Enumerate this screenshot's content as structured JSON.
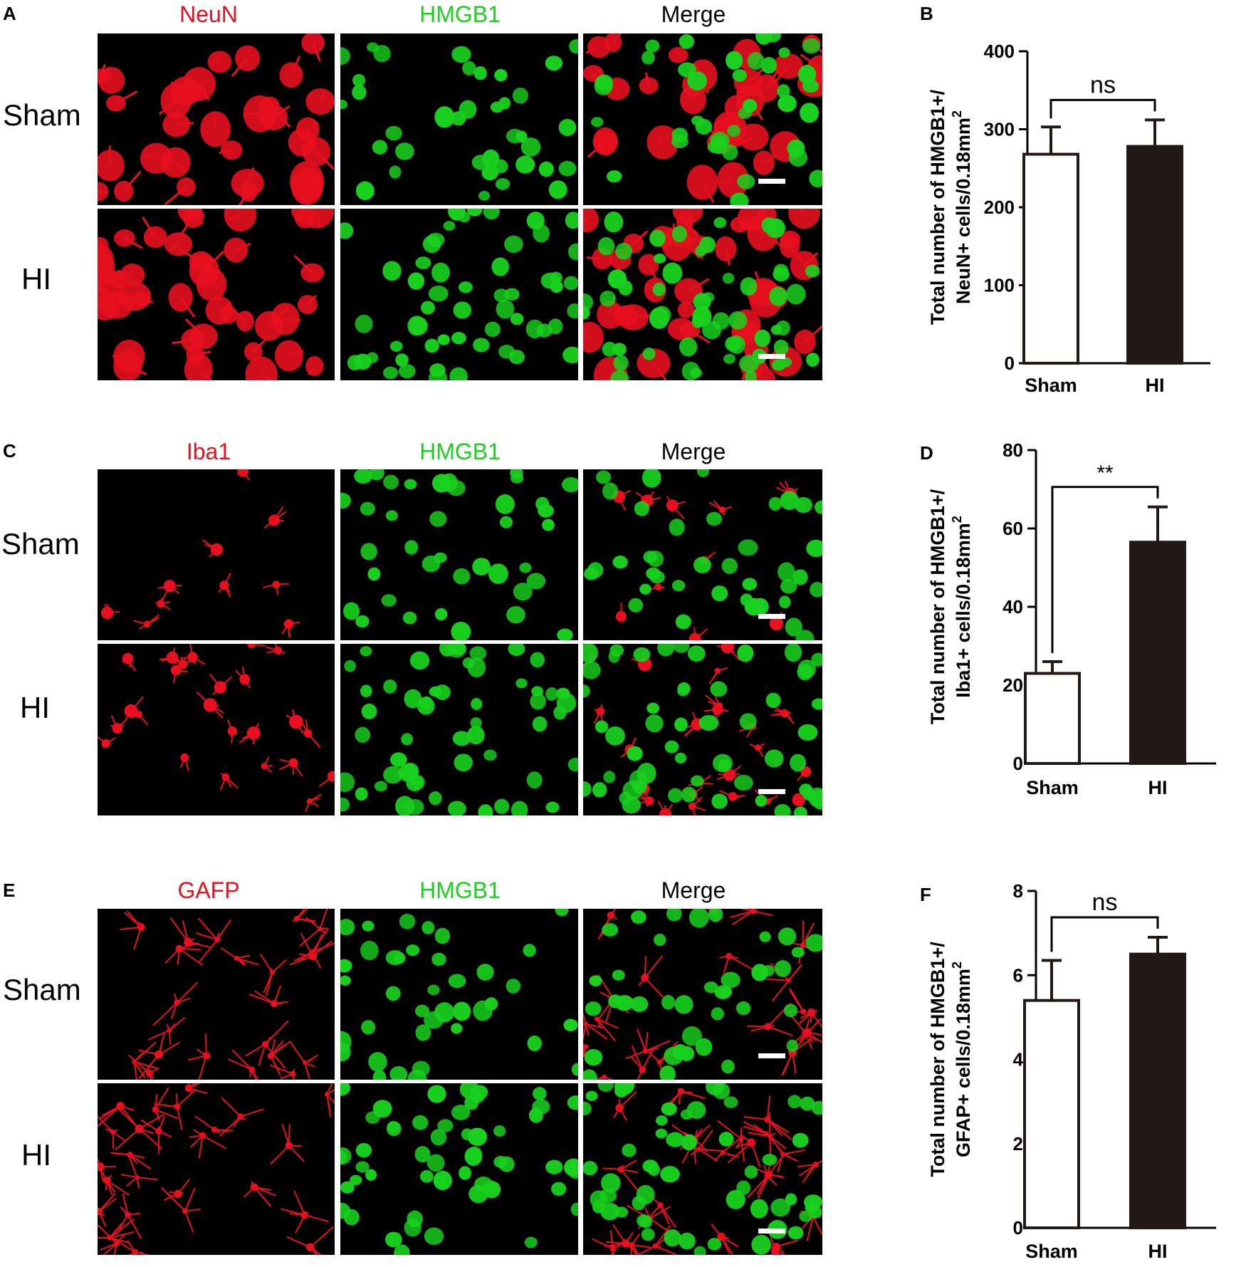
{
  "colors": {
    "red": "#e8101e",
    "green": "#19d11e",
    "merge": "#000000"
  },
  "rows": [
    "Sham",
    "HI"
  ],
  "panels": [
    {
      "letter": "A",
      "titles": [
        "NeuN",
        "HMGB1",
        "Merge"
      ],
      "rows": [
        "Sham",
        "HI"
      ],
      "stain": "soma"
    },
    {
      "letter": "C",
      "titles": [
        "Iba1",
        "HMGB1",
        "Merge"
      ],
      "rows": [
        "Sham",
        "HI"
      ],
      "stain": "microglia"
    },
    {
      "letter": "E",
      "titles": [
        "GAFP",
        "HMGB1",
        "Merge"
      ],
      "rows": [
        "Sham",
        "HI"
      ],
      "stain": "astro"
    }
  ],
  "chart_data": [
    {
      "letter": "B",
      "type": "bar",
      "categories": [
        "Sham",
        "HI"
      ],
      "values": [
        268,
        278
      ],
      "errors": [
        35,
        34
      ],
      "ylabel": [
        "Total number of HMGB1+/",
        "NeuN+ cells/0.18mm"
      ],
      "ylabel_sup": "2",
      "ylim": [
        0,
        400
      ],
      "yticks": [
        0,
        100,
        200,
        300,
        400
      ],
      "significance": "ns",
      "fills": [
        "#ffffff",
        "#231815"
      ]
    },
    {
      "letter": "D",
      "type": "bar",
      "categories": [
        "Sham",
        "HI"
      ],
      "values": [
        23,
        56.5
      ],
      "errors": [
        3,
        9
      ],
      "ylabel": [
        "Total number of HMGB1+/",
        "Iba1+ cells/0.18mm"
      ],
      "ylabel_sup": "2",
      "ylim": [
        0,
        80
      ],
      "yticks": [
        0,
        20,
        40,
        60,
        80
      ],
      "significance": "**",
      "fills": [
        "#ffffff",
        "#231815"
      ]
    },
    {
      "letter": "F",
      "type": "bar",
      "categories": [
        "Sham",
        "HI"
      ],
      "values": [
        5.4,
        6.5
      ],
      "errors": [
        0.95,
        0.4
      ],
      "ylabel": [
        "Total number of HMGB1+/",
        "GFAP+ cells/0.18mm"
      ],
      "ylabel_sup": "2",
      "ylim": [
        0,
        8
      ],
      "yticks": [
        0,
        2,
        4,
        6,
        8
      ],
      "significance": "ns",
      "fills": [
        "#ffffff",
        "#231815"
      ]
    }
  ]
}
